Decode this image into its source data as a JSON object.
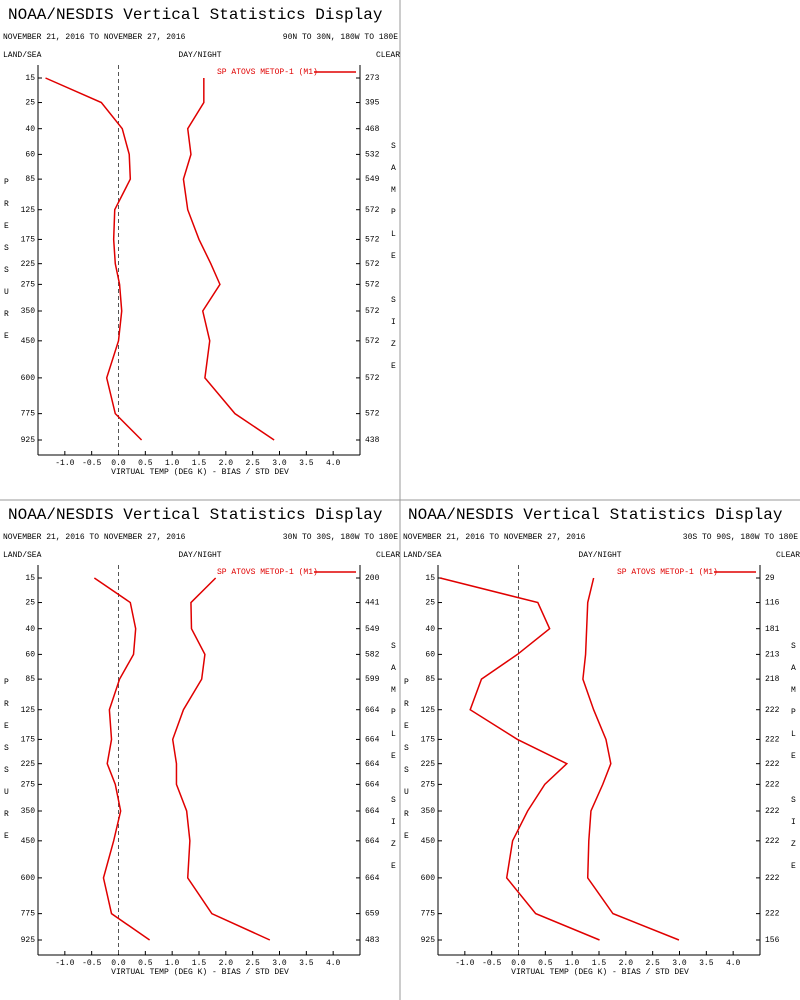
{
  "chart_data": [
    {
      "type": "line",
      "title": "NOAA/NESDIS Vertical Statistics Display",
      "subtitle": "NOVEMBER 21, 2016 TO NOVEMBER 27, 2016",
      "region": "90N TO 30N, 180W TO 180E",
      "land_sea": "LAND/SEA",
      "day_night": "DAY/NIGHT",
      "clear": "CLEAR",
      "ylabel": "PRESSURE",
      "y2label": "SAMPLE SIZE",
      "xlabel": "VIRTUAL TEMP (DEG K) - BIAS / STD DEV",
      "pressure": [
        15,
        25,
        40,
        60,
        85,
        125,
        175,
        225,
        275,
        350,
        450,
        600,
        775,
        925
      ],
      "sample_size": [
        273,
        395,
        468,
        532,
        549,
        572,
        572,
        572,
        572,
        572,
        572,
        572,
        572,
        438
      ],
      "series": [
        {
          "name": "SP ATOVS METOP-1 (M1)",
          "color": "#e00000",
          "bias": [
            -1.36,
            -0.32,
            0.07,
            0.2,
            0.22,
            -0.07,
            -0.09,
            -0.06,
            0.02,
            0.06,
            0.0,
            -0.22,
            -0.06,
            0.43
          ],
          "std_dev": [
            1.59,
            1.59,
            1.29,
            1.35,
            1.21,
            1.29,
            1.5,
            1.72,
            1.89,
            1.57,
            1.7,
            1.61,
            2.17,
            2.9
          ]
        }
      ],
      "xlim": [
        -1.5,
        4.5
      ],
      "xticks": [
        {
          "value": -1,
          "label": "-1.0"
        },
        {
          "value": -0.5,
          "label": "-0.5"
        },
        {
          "value": 0,
          "label": "0.0"
        },
        {
          "value": 0.5,
          "label": "0.5"
        },
        {
          "value": 1,
          "label": "1.0"
        },
        {
          "value": 1.5,
          "label": "1.5"
        },
        {
          "value": 2,
          "label": "2.0"
        },
        {
          "value": 2.5,
          "label": "2.5"
        },
        {
          "value": 3,
          "label": "3.0"
        },
        {
          "value": 3.5,
          "label": "3.5"
        },
        {
          "value": 4,
          "label": "4.0"
        }
      ]
    },
    {
      "type": "line",
      "title": "NOAA/NESDIS Vertical Statistics Display",
      "subtitle": "NOVEMBER 21, 2016 TO NOVEMBER 27, 2016",
      "region": "30N TO 30S, 180W TO 180E",
      "land_sea": "LAND/SEA",
      "day_night": "DAY/NIGHT",
      "clear": "CLEAR",
      "ylabel": "PRESSURE",
      "y2label": "SAMPLE SIZE",
      "xlabel": "VIRTUAL TEMP (DEG K) - BIAS / STD DEV",
      "pressure": [
        15,
        25,
        40,
        60,
        85,
        125,
        175,
        225,
        275,
        350,
        450,
        600,
        775,
        925
      ],
      "sample_size": [
        200,
        441,
        549,
        582,
        599,
        664,
        664,
        664,
        664,
        664,
        664,
        664,
        659,
        483
      ],
      "series": [
        {
          "name": "SP ATOVS METOP-1 (M1)",
          "color": "#e00000",
          "bias": [
            -0.45,
            0.22,
            0.32,
            0.28,
            0.02,
            -0.17,
            -0.13,
            -0.21,
            -0.06,
            0.04,
            -0.09,
            -0.28,
            -0.13,
            0.58
          ],
          "std_dev": [
            1.81,
            1.35,
            1.36,
            1.61,
            1.55,
            1.21,
            1.01,
            1.08,
            1.08,
            1.27,
            1.33,
            1.29,
            1.74,
            2.82
          ]
        }
      ],
      "xlim": [
        -1.5,
        4.5
      ],
      "xticks": [
        {
          "value": -1,
          "label": "-1.0"
        },
        {
          "value": -0.5,
          "label": "-0.5"
        },
        {
          "value": 0,
          "label": "0.0"
        },
        {
          "value": 0.5,
          "label": "0.5"
        },
        {
          "value": 1,
          "label": "1.0"
        },
        {
          "value": 1.5,
          "label": "1.5"
        },
        {
          "value": 2,
          "label": "2.0"
        },
        {
          "value": 2.5,
          "label": "2.5"
        },
        {
          "value": 3,
          "label": "3.0"
        },
        {
          "value": 3.5,
          "label": "3.5"
        },
        {
          "value": 4,
          "label": "4.0"
        }
      ]
    },
    {
      "type": "line",
      "title": "NOAA/NESDIS Vertical Statistics Display",
      "subtitle": "NOVEMBER 21, 2016 TO NOVEMBER 27, 2016",
      "region": "30S TO 90S, 180W TO 180E",
      "land_sea": "LAND/SEA",
      "day_night": "DAY/NIGHT",
      "clear": "CLEAR",
      "ylabel": "PRESSURE",
      "y2label": "SAMPLE SIZE",
      "xlabel": "VIRTUAL TEMP (DEG K) - BIAS / STD DEV",
      "pressure": [
        15,
        25,
        40,
        60,
        85,
        125,
        175,
        225,
        275,
        350,
        450,
        600,
        775,
        925
      ],
      "sample_size": [
        29,
        116,
        181,
        213,
        218,
        222,
        222,
        222,
        222,
        222,
        222,
        222,
        222,
        156
      ],
      "series": [
        {
          "name": "SP ATOVS METOP-1 (M1)",
          "color": "#e00000",
          "bias": [
            -1.46,
            0.36,
            0.58,
            -0.02,
            -0.69,
            -0.9,
            -0.02,
            0.9,
            0.49,
            0.17,
            -0.11,
            -0.22,
            0.32,
            1.51
          ],
          "std_dev": [
            1.4,
            1.29,
            1.27,
            1.25,
            1.2,
            1.4,
            1.63,
            1.72,
            1.57,
            1.35,
            1.31,
            1.29,
            1.76,
            2.99
          ]
        }
      ],
      "xlim": [
        -1.5,
        4.5
      ],
      "xticks": [
        {
          "value": -1,
          "label": "-1.0"
        },
        {
          "value": -0.5,
          "label": "-0.5"
        },
        {
          "value": 0,
          "label": "0.0"
        },
        {
          "value": 0.5,
          "label": "0.5"
        },
        {
          "value": 1,
          "label": "1.0"
        },
        {
          "value": 1.5,
          "label": "1.5"
        },
        {
          "value": 2,
          "label": "2.0"
        },
        {
          "value": 2.5,
          "label": "2.5"
        },
        {
          "value": 3,
          "label": "3.0"
        },
        {
          "value": 3.5,
          "label": "3.5"
        },
        {
          "value": 4,
          "label": "4.0"
        }
      ]
    }
  ]
}
